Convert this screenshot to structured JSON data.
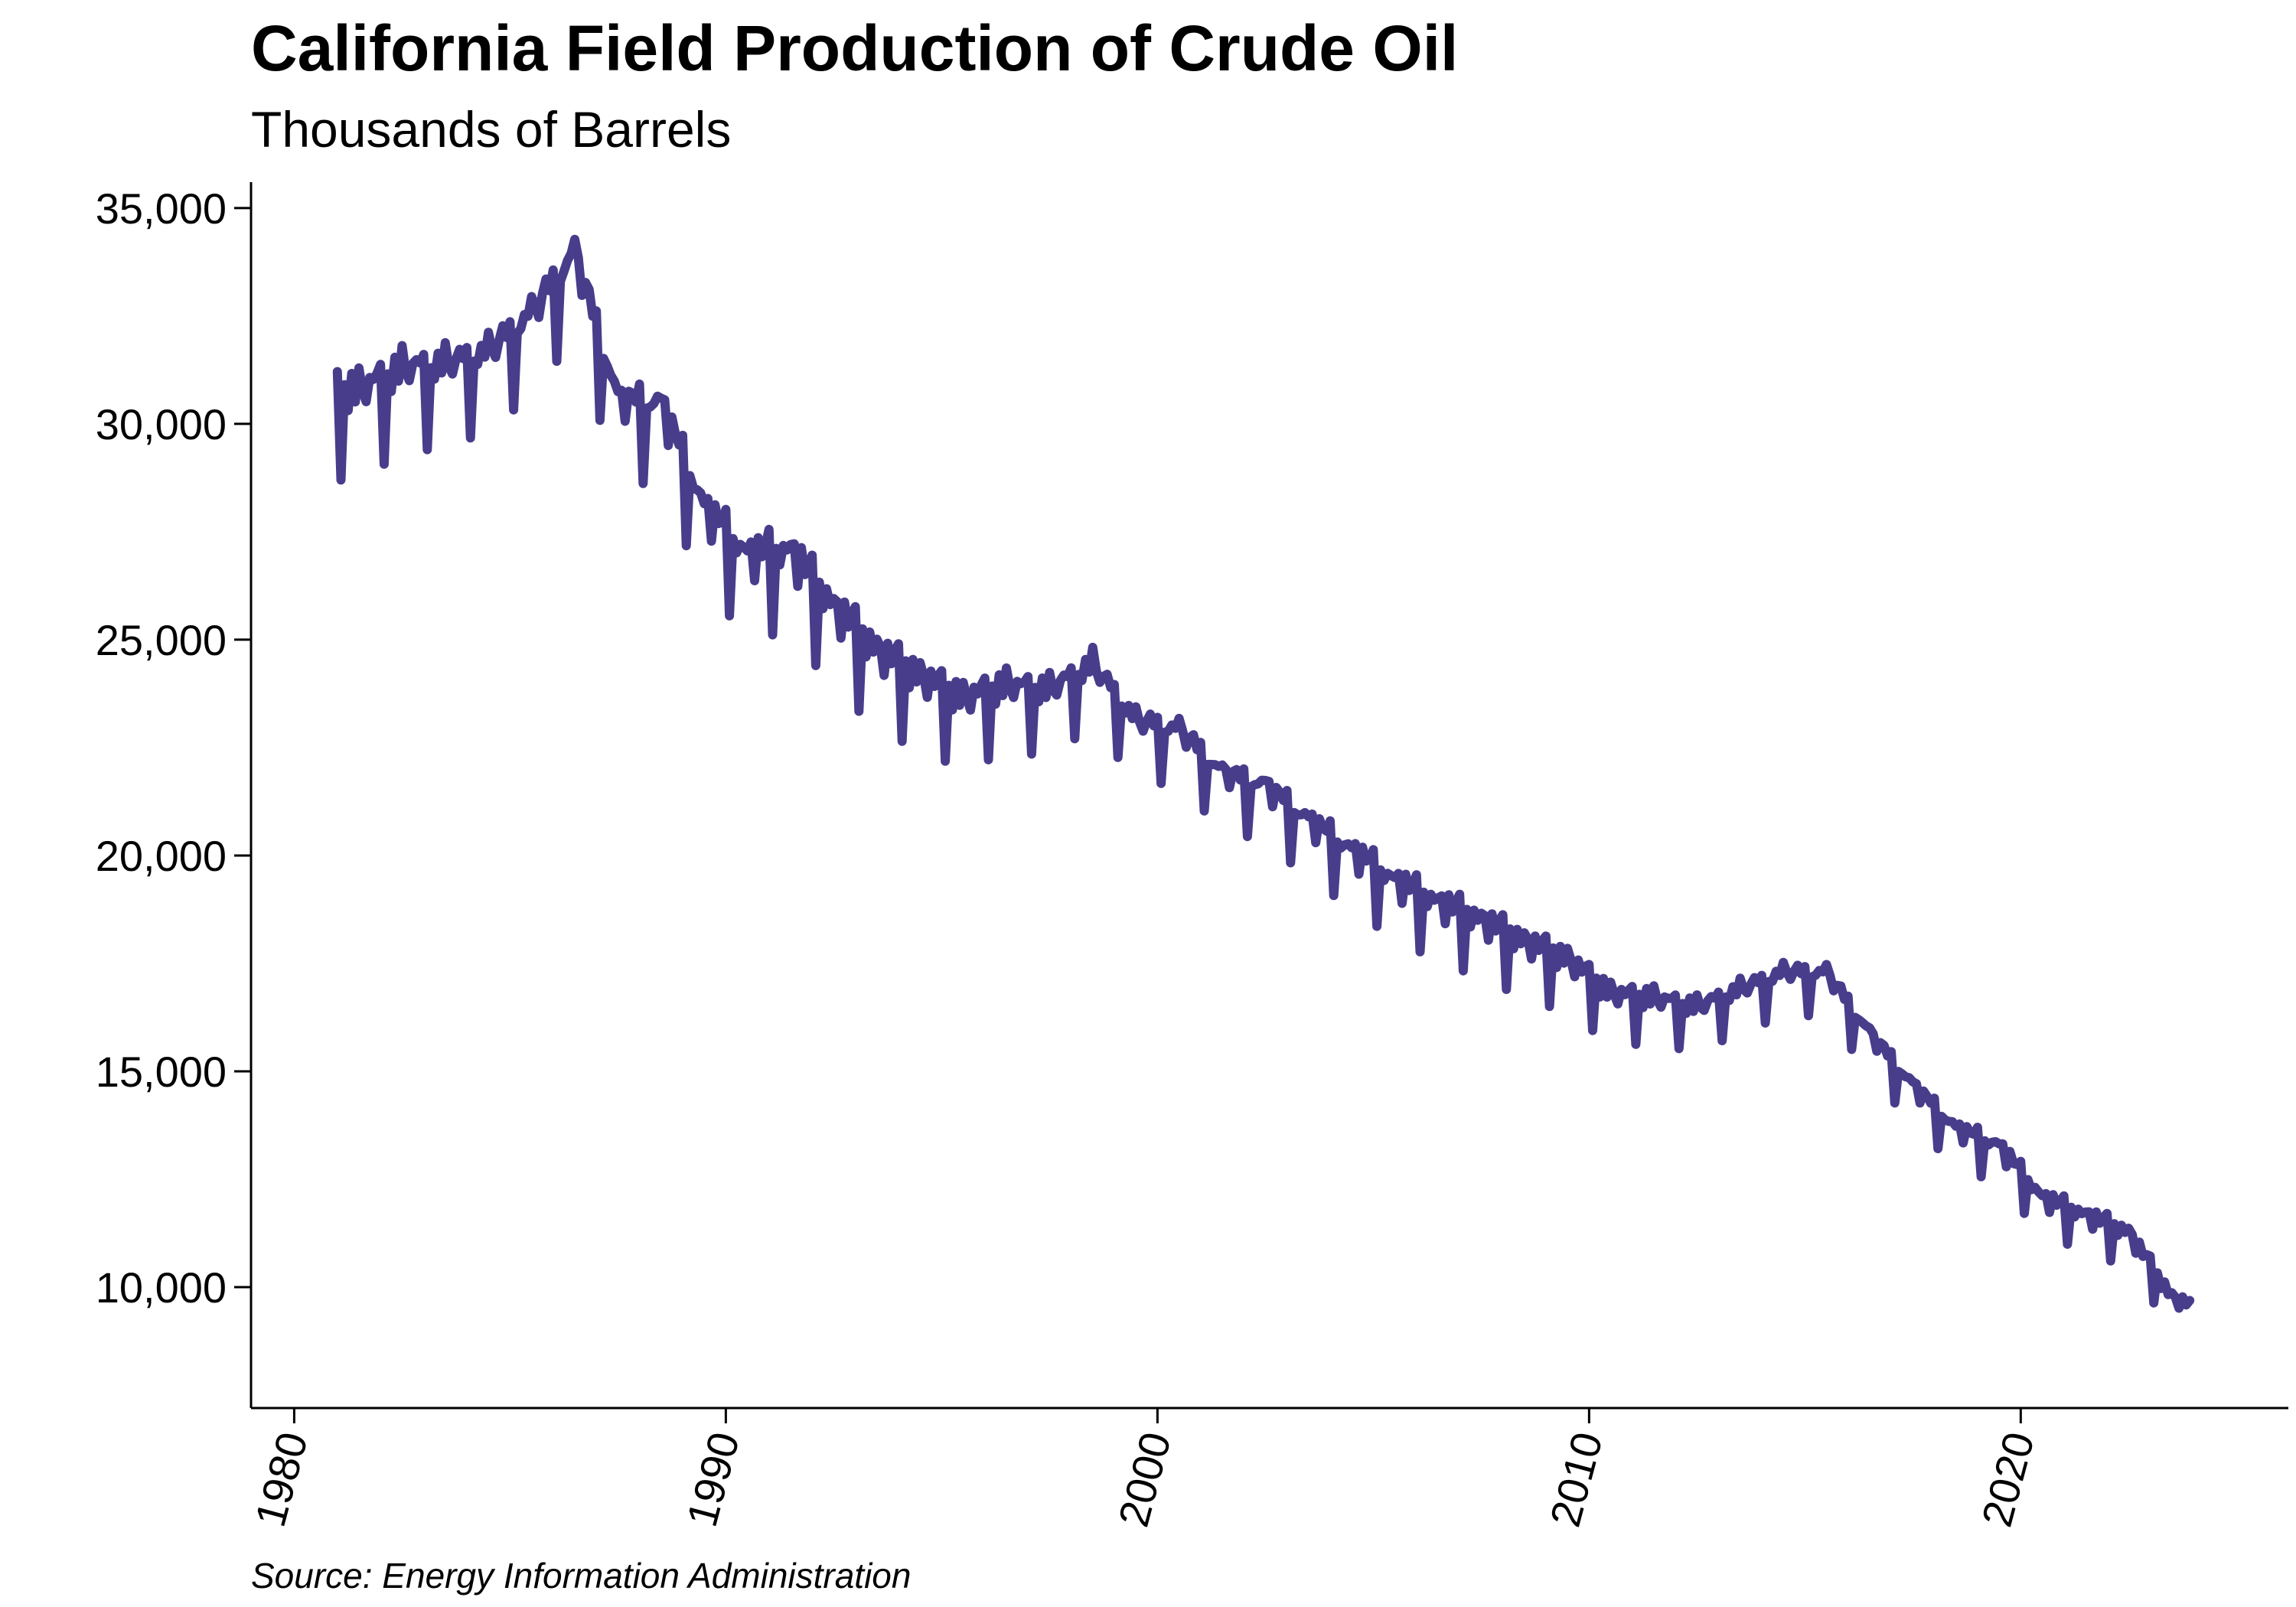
{
  "chart_data": {
    "type": "line",
    "title": "California Field Production of Crude Oil",
    "subtitle": "Thousands of Barrels",
    "caption": "Source: Energy Information Administration",
    "xlabel": "",
    "ylabel": "",
    "x_ticks": [
      1980,
      1990,
      2000,
      2010,
      2020
    ],
    "x_tick_labels": [
      "1980",
      "1990",
      "2000",
      "2010",
      "2020"
    ],
    "y_ticks": [
      10000,
      15000,
      20000,
      25000,
      30000,
      35000
    ],
    "y_tick_labels": [
      "10,000",
      "15,000",
      "20,000",
      "25,000",
      "30,000",
      "35,000"
    ],
    "xlim": [
      1979,
      2026.2
    ],
    "ylim": [
      7200,
      35600
    ],
    "grid": false,
    "legend": "none",
    "line_color": "#483D8B",
    "annual_levels": {
      "years": [
        1981,
        1982,
        1983,
        1984,
        1985,
        1986,
        1987,
        1988,
        1989,
        1990,
        1991,
        1992,
        1993,
        1994,
        1995,
        1996,
        1997,
        1998,
        1999,
        2000,
        2001,
        2002,
        2003,
        2004,
        2005,
        2006,
        2007,
        2008,
        2009,
        2010,
        2011,
        2012,
        2013,
        2014,
        2015,
        2016,
        2017,
        2018,
        2019,
        2020,
        2021,
        2022,
        2023,
        2024
      ],
      "values": [
        30600,
        31100,
        31200,
        31500,
        32400,
        33800,
        30400,
        30300,
        27900,
        26800,
        26900,
        25600,
        24600,
        24000,
        23500,
        23800,
        23700,
        24300,
        23000,
        22800,
        21800,
        21500,
        20700,
        20000,
        19300,
        18800,
        18400,
        17900,
        17500,
        16700,
        16600,
        16400,
        16800,
        17200,
        17200,
        15800,
        14600,
        13600,
        13200,
        12000,
        11600,
        11200,
        9700,
        9300
      ]
    },
    "seasonal_pattern": [
      1.0,
      -3.0,
      0.3,
      -0.2,
      0.6,
      0.2,
      0.8,
      0.5,
      -0.5,
      0.7,
      0.4,
      0.5
    ],
    "series": [
      {
        "name": "",
        "note_x": "decimal years, monthly observations Jan 1981 – Dec 2023"
      }
    ]
  }
}
